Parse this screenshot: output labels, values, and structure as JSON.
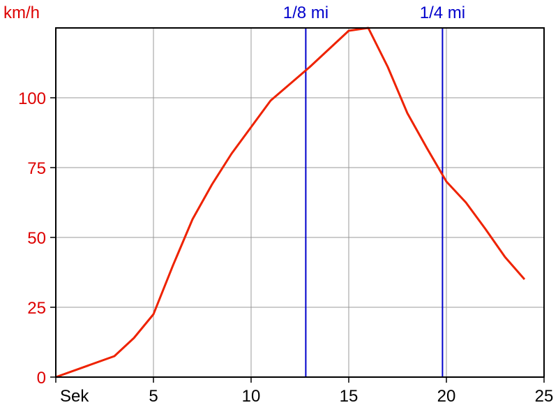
{
  "chart_data": {
    "type": "line",
    "title": "",
    "xlabel": "Sek",
    "ylabel": "km/h",
    "xlim": [
      0,
      25
    ],
    "ylim": [
      0,
      125
    ],
    "grid": true,
    "x_ticks": [
      "5",
      "10",
      "15",
      "20",
      "25"
    ],
    "y_ticks": [
      "0",
      "25",
      "50",
      "75",
      "100"
    ],
    "markers": [
      {
        "label": "1/8 mi",
        "x": 12.8
      },
      {
        "label": "1/4 mi",
        "x": 19.8
      }
    ],
    "series": [
      {
        "color": "#ee2200",
        "points": [
          [
            0,
            0
          ],
          [
            3,
            7.5
          ],
          [
            4,
            14
          ],
          [
            5,
            22.5
          ],
          [
            6,
            40
          ],
          [
            7,
            56.5
          ],
          [
            8,
            69
          ],
          [
            9,
            80
          ],
          [
            10,
            89.5
          ],
          [
            11,
            99
          ],
          [
            12,
            105
          ],
          [
            13,
            111
          ],
          [
            14,
            117.5
          ],
          [
            15,
            124
          ],
          [
            16,
            125
          ],
          [
            17,
            111
          ],
          [
            18,
            94.5
          ],
          [
            19,
            82
          ],
          [
            20,
            70
          ],
          [
            21,
            62.5
          ],
          [
            22,
            53
          ],
          [
            23,
            43
          ],
          [
            24,
            35
          ]
        ]
      }
    ]
  },
  "colors": {
    "series": "#ee2200",
    "marker": "#0000cc",
    "grid": "#999999",
    "axis": "#000000"
  }
}
